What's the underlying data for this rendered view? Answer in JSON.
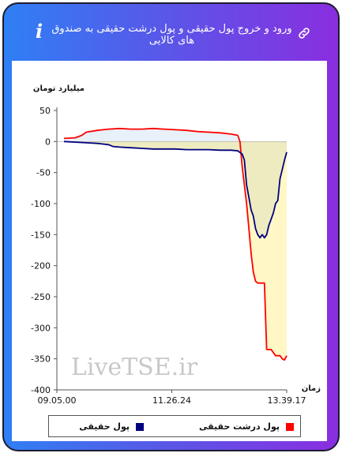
{
  "header": {
    "title": "ورود و خروج پول حقیقی و پول درشت حقیقی به صندوق های کالایی",
    "info_icon": "i",
    "link_icon": "link-icon"
  },
  "chart_data": {
    "type": "line",
    "ylabel": "میلیارد تومان",
    "xlabel": "زمان",
    "ylim": [
      -400,
      50
    ],
    "yticks": [
      50,
      0,
      -50,
      -100,
      -150,
      -200,
      -250,
      -300,
      -350,
      -400
    ],
    "xticks": [
      "09.05.00",
      "11.26.24",
      "13.39.17"
    ],
    "watermark": "LiveTSE.ir",
    "colors": {
      "real": "#00007f",
      "big": "#ff0000",
      "area_light": "#fff7c6",
      "area_dark": "#efebc0",
      "area_pos": "#e8f0fa"
    },
    "series": [
      {
        "name": "پول حقیقی",
        "color": "#00007f",
        "x": [
          0,
          5,
          10,
          15,
          20,
          22,
          25,
          30,
          35,
          40,
          45,
          50,
          55,
          60,
          65,
          70,
          75,
          78,
          80,
          81,
          82,
          83,
          84,
          85,
          86,
          87,
          88,
          89,
          90,
          91,
          92,
          93,
          94,
          95,
          96,
          97,
          98,
          99,
          100
        ],
        "values": [
          0,
          -1,
          -2,
          -3,
          -5,
          -8,
          -9,
          -10,
          -11,
          -12,
          -12,
          -12,
          -13,
          -13,
          -13,
          -14,
          -14,
          -15,
          -20,
          -30,
          -70,
          -90,
          -110,
          -120,
          -140,
          -150,
          -155,
          -150,
          -155,
          -150,
          -135,
          -125,
          -115,
          -100,
          -95,
          -60,
          -45,
          -30,
          -17
        ]
      },
      {
        "name": "پول درشت حقیقی",
        "color": "#ff0000",
        "x": [
          0,
          5,
          8,
          10,
          15,
          20,
          25,
          30,
          35,
          40,
          45,
          50,
          55,
          60,
          65,
          70,
          75,
          78,
          79,
          80,
          81,
          82,
          83,
          84,
          85,
          86,
          87,
          88,
          89,
          90,
          91,
          92,
          93,
          94,
          95,
          96,
          97,
          98,
          99,
          100
        ],
        "values": [
          5,
          6,
          10,
          15,
          18,
          20,
          21,
          20,
          20,
          21,
          20,
          19,
          18,
          16,
          15,
          14,
          12,
          10,
          0,
          -40,
          -70,
          -100,
          -140,
          -180,
          -210,
          -225,
          -228,
          -228,
          -228,
          -228,
          -335,
          -335,
          -335,
          -340,
          -345,
          -345,
          -345,
          -350,
          -352,
          -345
        ]
      }
    ]
  },
  "legend": {
    "real": "پول حقیقی",
    "big": "پول درشت حقیقی"
  }
}
